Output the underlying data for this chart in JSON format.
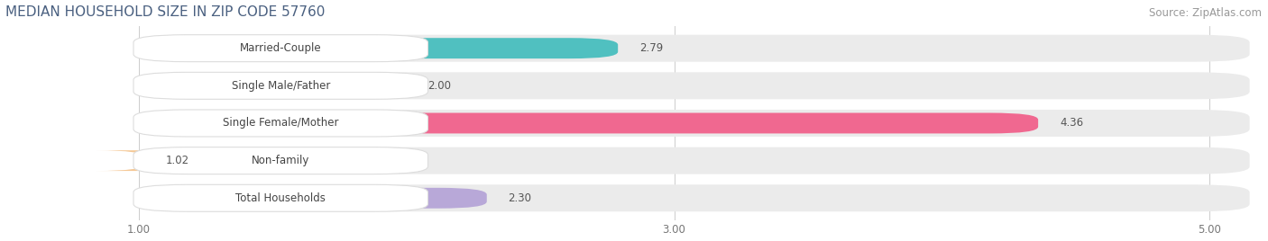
{
  "title": "MEDIAN HOUSEHOLD SIZE IN ZIP CODE 57760",
  "source": "Source: ZipAtlas.com",
  "categories": [
    "Married-Couple",
    "Single Male/Father",
    "Single Female/Mother",
    "Non-family",
    "Total Households"
  ],
  "values": [
    2.79,
    2.0,
    4.36,
    1.02,
    2.3
  ],
  "bar_colors": [
    "#50c0c0",
    "#9ab4e8",
    "#f06890",
    "#f5c896",
    "#b8a8d8"
  ],
  "background_color": "#ffffff",
  "plot_bg_color": "#f5f5f5",
  "xlim_min": 0.5,
  "xlim_max": 5.2,
  "xstart": 1.0,
  "xticks": [
    1.0,
    3.0,
    5.0
  ],
  "title_color": "#4a6080",
  "title_fontsize": 11,
  "label_fontsize": 8.5,
  "value_fontsize": 8.5,
  "source_fontsize": 8.5,
  "source_color": "#999999"
}
